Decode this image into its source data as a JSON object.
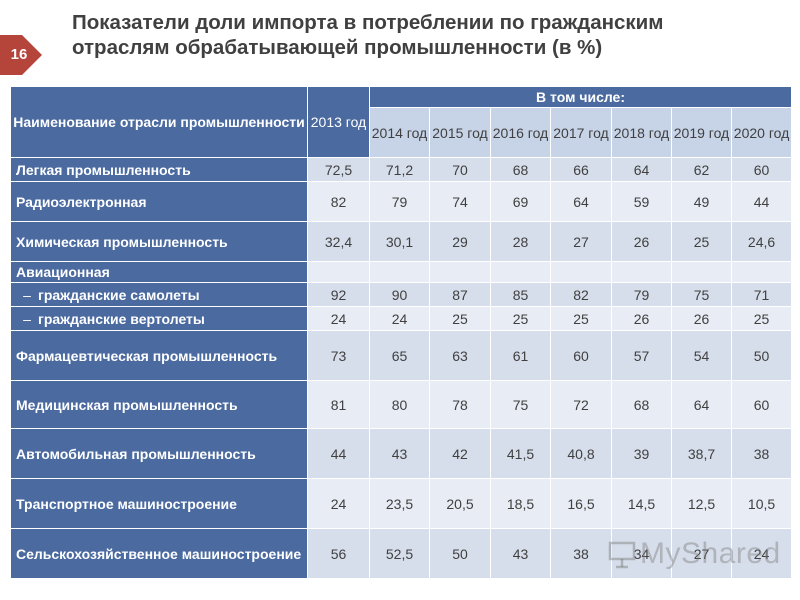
{
  "page_number": "16",
  "title": {
    "line1": "Показатели доли импорта в потреблении по гражданским",
    "line2": "отраслям обрабатывающей промышленности (в %)"
  },
  "table": {
    "header": {
      "name_col": "Наименование отрасли промышленности",
      "base_year": "2013 год",
      "group_label": "В том числе:",
      "years": [
        "2014 год",
        "2015 год",
        "2016 год",
        "2017 год",
        "2018 год",
        "2019 год",
        "2020 год"
      ]
    },
    "rows": [
      {
        "label": "Легкая промышленность",
        "sub": false,
        "values": [
          "72,5",
          "71,2",
          "70",
          "68",
          "66",
          "64",
          "62",
          "60"
        ]
      },
      {
        "label": "Радиоэлектронная",
        "sub": false,
        "values": [
          "82",
          "79",
          "74",
          "69",
          "64",
          "59",
          "49",
          "44"
        ]
      },
      {
        "label": "Химическая промышленность",
        "sub": false,
        "values": [
          "32,4",
          "30,1",
          "29",
          "28",
          "27",
          "26",
          "25",
          "24,6"
        ]
      },
      {
        "label": "Авиационная",
        "sub": false,
        "values": [
          "",
          "",
          "",
          "",
          "",
          "",
          "",
          ""
        ]
      },
      {
        "label": "гражданские самолеты",
        "sub": true,
        "values": [
          "92",
          "90",
          "87",
          "85",
          "82",
          "79",
          "75",
          "71"
        ]
      },
      {
        "label": "гражданские вертолеты",
        "sub": true,
        "values": [
          "24",
          "24",
          "25",
          "25",
          "25",
          "26",
          "26",
          "25"
        ]
      },
      {
        "label": "Фармацевтическая промышленность",
        "sub": false,
        "values": [
          "73",
          "65",
          "63",
          "61",
          "60",
          "57",
          "54",
          "50"
        ]
      },
      {
        "label": "Медицинская промышленность",
        "sub": false,
        "values": [
          "81",
          "80",
          "78",
          "75",
          "72",
          "68",
          "64",
          "60"
        ]
      },
      {
        "label": "Автомобильная промышленность",
        "sub": false,
        "values": [
          "44",
          "43",
          "42",
          "41,5",
          "40,8",
          "39",
          "38,7",
          "38"
        ]
      },
      {
        "label": "Транспортное машиностроение",
        "sub": false,
        "values": [
          "24",
          "23,5",
          "20,5",
          "18,5",
          "16,5",
          "14,5",
          "12,5",
          "10,5"
        ]
      },
      {
        "label": "Сельскохозяйственное машиностроение",
        "sub": false,
        "values": [
          "56",
          "52,5",
          "50",
          "43",
          "38",
          "34",
          "27",
          "24"
        ]
      }
    ]
  },
  "watermark": "MyShared",
  "colors": {
    "title_text": "#404040",
    "badge": "#b5443a",
    "header_bg": "#4a6aa0",
    "year_header_bg": "#c7d4e8",
    "cell_bg": "#d7deeb",
    "cell_alt_bg": "#e8ecf4"
  }
}
